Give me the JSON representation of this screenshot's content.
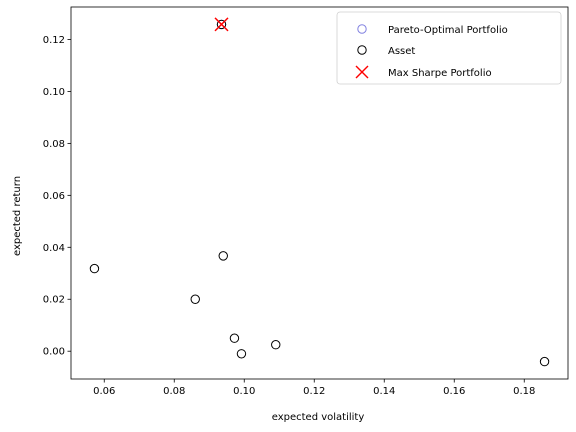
{
  "chart_data": {
    "type": "scatter",
    "xlabel": "expected volatility",
    "ylabel": "expected return",
    "xlim": [
      0.0505,
      0.1925
    ],
    "ylim": [
      -0.0107,
      0.1325
    ],
    "xticks": [
      0.06,
      0.08,
      0.1,
      0.12,
      0.14,
      0.16,
      0.18
    ],
    "xtick_labels": [
      "0.06",
      "0.08",
      "0.10",
      "0.12",
      "0.14",
      "0.16",
      "0.18"
    ],
    "yticks": [
      0.0,
      0.02,
      0.04,
      0.06,
      0.08,
      0.1,
      0.12
    ],
    "ytick_labels": [
      "0.00",
      "0.02",
      "0.04",
      "0.06",
      "0.08",
      "0.10",
      "0.12"
    ],
    "grid": false,
    "legend_position": "top-right",
    "series": [
      {
        "name": "Pareto-Optimal Portfolio",
        "marker": "circle-open",
        "color": "#8080e0",
        "points": [
          {
            "x": 0.0935,
            "y": 0.1258
          }
        ]
      },
      {
        "name": "Asset",
        "marker": "circle-open",
        "color": "#000000",
        "points": [
          {
            "x": 0.0572,
            "y": 0.0318
          },
          {
            "x": 0.086,
            "y": 0.02
          },
          {
            "x": 0.094,
            "y": 0.0367
          },
          {
            "x": 0.0972,
            "y": 0.005
          },
          {
            "x": 0.0992,
            "y": -0.001
          },
          {
            "x": 0.109,
            "y": 0.0025
          },
          {
            "x": 0.1858,
            "y": -0.004
          },
          {
            "x": 0.0935,
            "y": 0.1258
          }
        ]
      },
      {
        "name": "Max Sharpe Portfolio",
        "marker": "x",
        "color": "#ff0000",
        "points": [
          {
            "x": 0.0935,
            "y": 0.1258
          }
        ]
      }
    ]
  }
}
